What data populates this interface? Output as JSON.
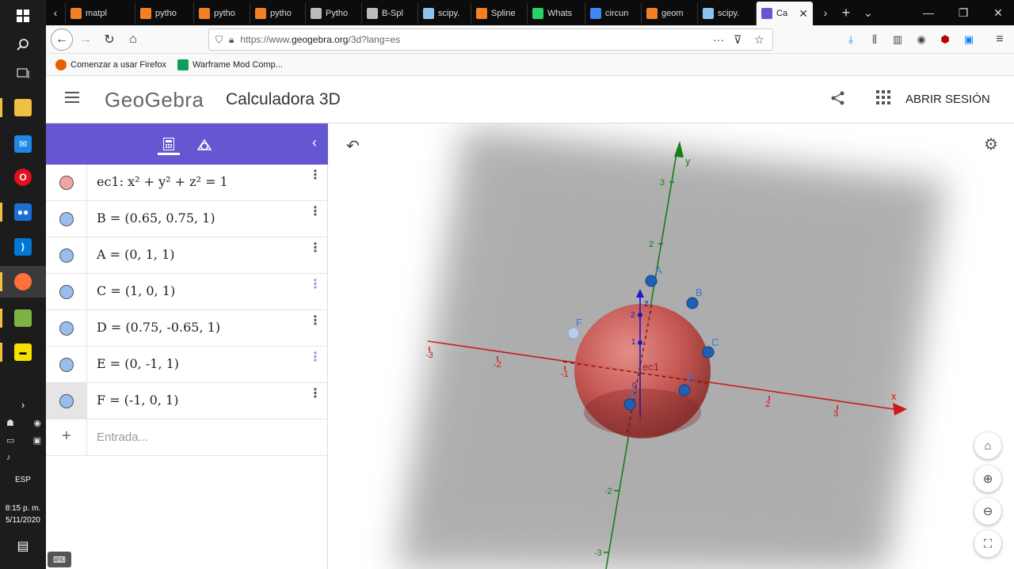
{
  "taskbar": {
    "lang": "ESP",
    "time": "8:15 p. m.",
    "date": "5/11/2020"
  },
  "browser": {
    "tabs": [
      {
        "title": "matpl",
        "icon": "stackoverflow-icon",
        "color": "#f48024"
      },
      {
        "title": "pytho",
        "icon": "stackoverflow-icon",
        "color": "#f48024"
      },
      {
        "title": "pytho",
        "icon": "stackoverflow-icon",
        "color": "#f48024"
      },
      {
        "title": "pytho",
        "icon": "stackoverflow-icon",
        "color": "#f48024"
      },
      {
        "title": "Pytho",
        "icon": "book-icon",
        "color": "#bbbbbb"
      },
      {
        "title": "B-Spl",
        "icon": "book-icon",
        "color": "#bbbbbb"
      },
      {
        "title": "scipy.",
        "icon": "scipy-icon",
        "color": "#8cc4f0"
      },
      {
        "title": "Spline",
        "icon": "stackoverflow-icon",
        "color": "#f48024"
      },
      {
        "title": "Whats",
        "icon": "whatsapp-icon",
        "color": "#25d366"
      },
      {
        "title": "circun",
        "icon": "google-icon",
        "color": "#4285f4"
      },
      {
        "title": "geom",
        "icon": "stackoverflow-icon",
        "color": "#f48024"
      },
      {
        "title": "scipy.",
        "icon": "scipy-icon",
        "color": "#8cc4f0"
      },
      {
        "title": "Ca",
        "icon": "geogebra-icon",
        "color": "#6557d2"
      }
    ],
    "url_prefix": "https://www.",
    "url_domain": "geogebra.org",
    "url_suffix": "/3d?lang=es",
    "bookmarks": [
      {
        "label": "Comenzar a usar Firefox",
        "color": "#e66000"
      },
      {
        "label": "Warframe Mod Comp...",
        "color": "#0f9d58"
      }
    ]
  },
  "header": {
    "logo": "GeoGebra",
    "title": "Calculadora 3D",
    "signin": "ABRIR SESIÓN"
  },
  "algebra": {
    "items": [
      {
        "expr": "ec1: x² + y² + z² = 1",
        "color": "#f2a3a3"
      },
      {
        "expr": "B = (0.65, 0.75, 1)",
        "color": "#99bdec"
      },
      {
        "expr": "A = (0, 1, 1)",
        "color": "#99bdec"
      },
      {
        "expr": "C = (1, 0, 1)",
        "color": "#99bdec"
      },
      {
        "expr": "D = (0.75, -0.65, 1)",
        "color": "#99bdec"
      },
      {
        "expr": "E = (0, -1, 1)",
        "color": "#99bdec"
      },
      {
        "expr": "F = (-1, 0, 1)",
        "color": "#99bdec"
      }
    ],
    "input_placeholder": "Entrada..."
  },
  "view3d": {
    "x_label": "x",
    "y_label": "y",
    "z_label": "z",
    "x_ticks": [
      "-3",
      "-2",
      "-1",
      "2",
      "3"
    ],
    "y_ticks": [
      "3",
      "2",
      "-2",
      "-3"
    ],
    "z_ticks": [
      "2",
      "1",
      "0"
    ],
    "point_labels": [
      "A",
      "B",
      "C",
      "D",
      "E",
      "F"
    ],
    "sphere_label": "ec1"
  }
}
